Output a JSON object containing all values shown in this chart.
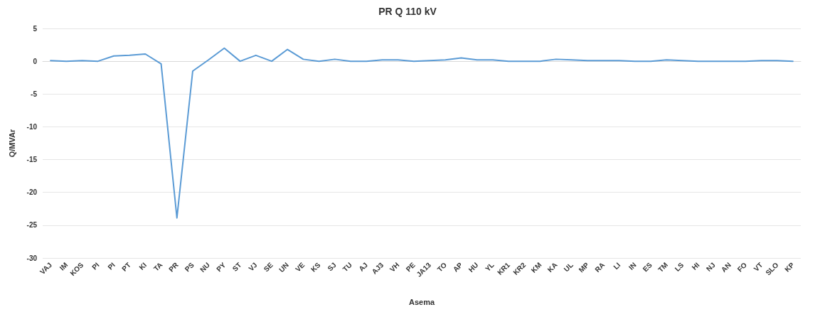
{
  "chart_data": {
    "type": "line",
    "title": "PR Q 110 kV",
    "xlabel": "Asema",
    "ylabel": "Q/MVAr",
    "categories": [
      "VAJ",
      "IM",
      "KOS",
      "PI",
      "PI",
      "PT",
      "KI",
      "TA",
      "PR",
      "PS",
      "NU",
      "PY",
      "ST",
      "VJ",
      "SE",
      "UN",
      "VE",
      "KS",
      "SJ",
      "TU",
      "AJ",
      "AJ3",
      "VH",
      "PE",
      "JA13",
      "TO",
      "AP",
      "HU",
      "YL",
      "KR1",
      "KR2",
      "KM",
      "KA",
      "UL",
      "MP",
      "RA",
      "LI",
      "IN",
      "ES",
      "TM",
      "LS",
      "HI",
      "NJ",
      "AN",
      "FO",
      "VT",
      "SLO",
      "KP"
    ],
    "series": [
      {
        "color": "#5b9bd5",
        "values": [
          0.1,
          0,
          0.1,
          0,
          0.8,
          0.9,
          1.1,
          -0.4,
          -23.9,
          -1.5,
          0.2,
          2.0,
          0,
          0.9,
          0,
          1.8,
          0.3,
          0,
          0.3,
          0,
          0,
          0.2,
          0.2,
          0,
          0.1,
          0.2,
          0.5,
          0.2,
          0.2,
          0,
          0,
          0,
          0.3,
          0.2,
          0.1,
          0.1,
          0.1,
          0,
          0,
          0.2,
          0.1,
          0,
          0,
          0,
          0,
          0.1,
          0.1,
          0
        ]
      }
    ],
    "ylim": [
      -30,
      5
    ],
    "yticks": [
      -30,
      -25,
      -20,
      -15,
      -10,
      -5,
      0,
      5
    ],
    "grid": "y",
    "marker": "none",
    "line_style": "solid"
  }
}
